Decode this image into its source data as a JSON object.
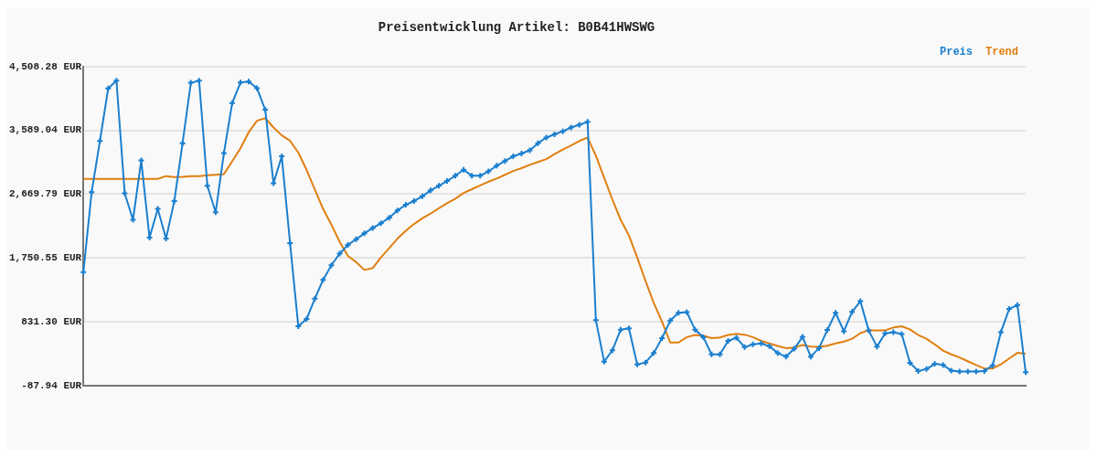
{
  "chart_data": {
    "type": "line",
    "title": "Preisentwicklung Artikel: B0B41HWSWG",
    "categories": [
      null,
      null,
      null,
      null,
      null,
      null,
      null,
      null,
      null,
      null,
      null,
      null,
      null,
      null,
      null,
      null,
      null,
      null,
      null,
      null,
      null,
      null,
      null,
      null,
      null,
      null,
      null,
      null,
      null,
      null,
      null,
      null,
      null,
      null,
      null,
      null,
      null,
      null,
      null,
      null,
      null,
      null,
      null,
      null,
      null,
      null,
      null,
      null,
      null,
      null,
      null,
      null,
      null,
      null,
      null,
      null,
      null,
      null,
      null,
      null,
      null,
      null,
      null,
      null,
      null,
      null,
      null,
      null,
      null,
      null,
      null,
      null,
      null,
      null,
      null,
      null,
      null,
      null,
      null,
      null,
      null,
      null,
      null,
      null,
      null,
      null,
      null,
      null,
      null,
      null,
      null,
      null,
      null,
      null,
      null,
      null,
      null,
      null,
      null,
      null,
      null,
      null,
      null,
      null,
      null,
      null,
      null,
      null,
      null,
      null,
      null,
      null,
      null,
      null,
      null
    ],
    "series": [
      {
        "name": "Preis",
        "color": "#1a7fcf",
        "marker": "cross",
        "values": [
          1548,
          2700,
          3436,
          4193,
          4305,
          2683,
          2301,
          3156,
          2044,
          2458,
          2030,
          2571,
          3404,
          4274,
          4305,
          2791,
          2409,
          3261,
          3981,
          4278,
          4292,
          4197,
          3886,
          2828,
          3215,
          1967,
          768,
          872,
          1165,
          1436,
          1646,
          1814,
          1940,
          2021,
          2106,
          2183,
          2251,
          2332,
          2436,
          2517,
          2571,
          2639,
          2724,
          2791,
          2859,
          2936,
          3021,
          2936,
          2936,
          2998,
          3080,
          3147,
          3215,
          3255,
          3301,
          3404,
          3485,
          3531,
          3576,
          3630,
          3670,
          3711,
          858,
          259,
          422,
          719,
          737,
          219,
          246,
          381,
          597,
          849,
          962,
          971,
          719,
          611,
          363,
          363,
          557,
          602,
          467,
          507,
          521,
          480,
          381,
          331,
          444,
          615,
          331,
          453,
          714,
          962,
          696,
          976,
          1129,
          710,
          476,
          665,
          683,
          656,
          241,
          124,
          151,
          227,
          210,
          129,
          115,
          115,
          115,
          124,
          205,
          683,
          1017,
          1075,
          105
        ]
      },
      {
        "name": "Trend",
        "color": "#e07f10",
        "marker": "none",
        "values": [
          2890,
          2890,
          2890,
          2890,
          2890,
          2890,
          2890,
          2890,
          2890,
          2890,
          2931,
          2917,
          2920,
          2931,
          2931,
          2944,
          2950,
          2958,
          3143,
          3332,
          3562,
          3728,
          3765,
          3630,
          3517,
          3440,
          3269,
          3021,
          2737,
          2458,
          2233,
          1985,
          1782,
          1692,
          1579,
          1606,
          1760,
          1895,
          2030,
          2143,
          2241,
          2323,
          2390,
          2467,
          2539,
          2606,
          2688,
          2742,
          2796,
          2850,
          2895,
          2949,
          3003,
          3044,
          3093,
          3134,
          3174,
          3247,
          3314,
          3373,
          3436,
          3485,
          3224,
          2909,
          2593,
          2301,
          2075,
          1760,
          1422,
          1106,
          836,
          534,
          534,
          611,
          642,
          633,
          597,
          606,
          642,
          660,
          647,
          611,
          557,
          521,
          484,
          453,
          462,
          498,
          476,
          471,
          489,
          521,
          548,
          588,
          669,
          710,
          710,
          710,
          750,
          768,
          723,
          642,
          588,
          507,
          417,
          363,
          318,
          264,
          210,
          160,
          160,
          219,
          304,
          385,
          372
        ]
      }
    ],
    "ylim": [
      -87.94,
      4508.28
    ],
    "yticks": [
      {
        "value": -87.94,
        "label": "-87.94 EUR"
      },
      {
        "value": 831.3,
        "label": "831.30 EUR"
      },
      {
        "value": 1750.55,
        "label": "1,750.55 EUR"
      },
      {
        "value": 2669.79,
        "label": "2,669.79 EUR"
      },
      {
        "value": 3589.04,
        "label": "3,589.04 EUR"
      },
      {
        "value": 4508.28,
        "label": "4,508.28 EUR"
      }
    ],
    "grid": "y",
    "legend": "top right",
    "tick_labels": "y"
  }
}
